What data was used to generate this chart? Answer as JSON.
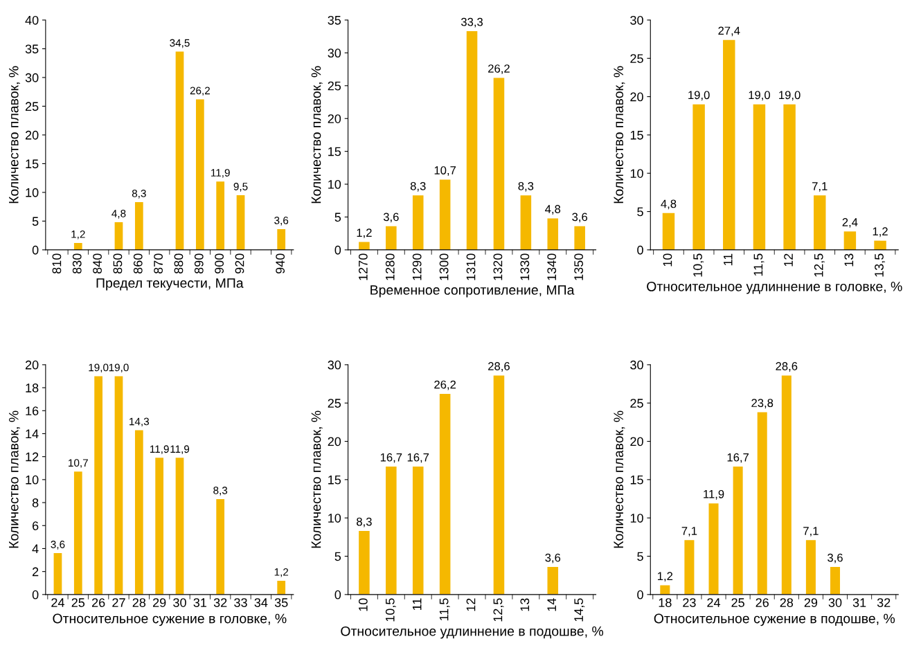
{
  "chart_data": [
    {
      "type": "bar",
      "xlabel": "Предел текучести, МПа",
      "ylabel": "Количество плавок, %",
      "categories": [
        "810",
        "830",
        "840",
        "850",
        "860",
        "870",
        "880",
        "890",
        "900",
        "920",
        null,
        "940"
      ],
      "values": [
        0,
        1.2,
        0,
        4.8,
        8.3,
        0,
        34.5,
        26.2,
        11.9,
        9.5,
        0,
        3.6
      ],
      "color": "#f5b800",
      "value_labels": [
        null,
        "1,2",
        null,
        "4,8",
        "8,3",
        null,
        "34,5",
        "26,2",
        "11,9",
        "9,5",
        null,
        "3,6"
      ],
      "ylim": [
        0,
        40
      ],
      "yticks": [
        0,
        5,
        10,
        15,
        20,
        25,
        30,
        35,
        40
      ]
    },
    {
      "type": "bar",
      "xlabel": "Временное сопротивление, МПа",
      "ylabel": "Количество плавок, %",
      "categories": [
        "1270",
        "1280",
        "1290",
        "1300",
        "1310",
        "1320",
        "1330",
        "1340",
        "1350"
      ],
      "values": [
        1.2,
        3.6,
        8.3,
        10.7,
        33.3,
        26.2,
        8.3,
        4.8,
        3.6
      ],
      "color": "#f5b800",
      "value_labels": [
        "1,2",
        "3,6",
        "8,3",
        "10,7",
        "33,3",
        "26,2",
        "8,3",
        "4,8",
        "3,6"
      ],
      "ylim": [
        0,
        35
      ],
      "yticks": [
        0,
        5,
        10,
        15,
        20,
        25,
        30,
        35
      ]
    },
    {
      "type": "bar",
      "xlabel": "Относительное удлиннение в головке, %",
      "ylabel": "Количество плавок, %",
      "categories": [
        "10",
        "10,5",
        "11",
        "11,5",
        "12",
        "12,5",
        "13",
        "13,5"
      ],
      "values": [
        4.8,
        19.0,
        27.4,
        19.0,
        19.0,
        7.1,
        2.4,
        1.2
      ],
      "color": "#f5b800",
      "value_labels": [
        "4,8",
        "19,0",
        "27,4",
        "19,0",
        "19,0",
        "7,1",
        "2,4",
        "1,2"
      ],
      "ylim": [
        0,
        30
      ],
      "yticks": [
        0,
        5,
        10,
        15,
        20,
        25,
        30
      ]
    },
    {
      "type": "bar",
      "xlabel": "Относительное сужение в головке, %",
      "ylabel": "Количество плавок, %",
      "categories": [
        "24",
        "25",
        "26",
        "27",
        "28",
        "29",
        "30",
        "31",
        "32",
        "33",
        "34",
        "35"
      ],
      "values": [
        3.6,
        10.7,
        19.0,
        19.0,
        14.3,
        11.9,
        11.9,
        0,
        8.3,
        0,
        0,
        1.2
      ],
      "color": "#f5b800",
      "value_labels": [
        "3,6",
        "10,7",
        "19,0",
        "19,0",
        "14,3",
        "11,9",
        "11,9",
        null,
        "8,3",
        null,
        null,
        "1,2"
      ],
      "ylim": [
        0,
        20
      ],
      "yticks": [
        0,
        2,
        4,
        6,
        8,
        10,
        12,
        14,
        16,
        18,
        20
      ]
    },
    {
      "type": "bar",
      "xlabel": "Относительное удлиннение в подошве, %",
      "ylabel": "Количество плавок, %",
      "categories": [
        "10",
        "10,5",
        "11",
        "11,5",
        "12",
        "12,5",
        "13",
        "14",
        "14,5"
      ],
      "values": [
        8.3,
        16.7,
        16.7,
        26.2,
        0,
        28.6,
        0,
        3.6,
        0
      ],
      "color": "#f5b800",
      "value_labels": [
        "8,3",
        "16,7",
        "16,7",
        "26,2",
        null,
        "28,6",
        null,
        "3,6",
        null
      ],
      "ylim": [
        0,
        30
      ],
      "yticks": [
        0,
        5,
        10,
        15,
        20,
        25,
        30
      ]
    },
    {
      "type": "bar",
      "xlabel": "Относительное сужение в подошве, %",
      "ylabel": "Количество плавок, %",
      "categories": [
        "18",
        "23",
        "24",
        "25",
        "26",
        "28",
        "29",
        "30",
        "31",
        "32"
      ],
      "values": [
        1.2,
        7.1,
        11.9,
        16.7,
        23.8,
        28.6,
        7.1,
        3.6,
        0,
        0
      ],
      "color": "#f5b800",
      "value_labels": [
        "1,2",
        "7,1",
        "11,9",
        "16,7",
        "23,8",
        "28,6",
        "7,1",
        "3,6",
        null,
        null
      ],
      "ylim": [
        0,
        30
      ],
      "yticks": [
        0,
        5,
        10,
        15,
        20,
        25,
        30
      ]
    }
  ]
}
